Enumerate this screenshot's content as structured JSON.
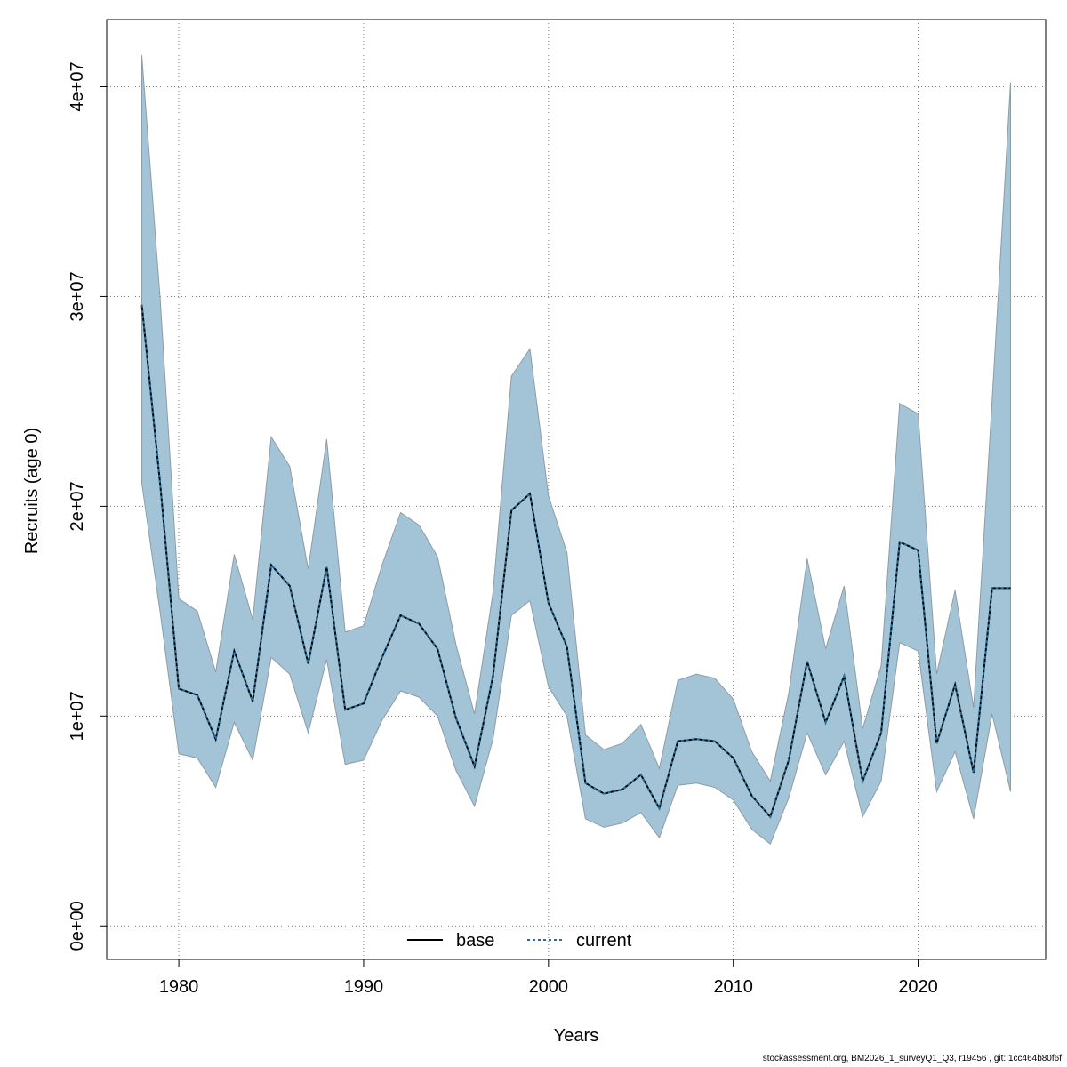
{
  "chart_data": {
    "type": "line",
    "title": "",
    "xlabel": "Years",
    "ylabel": "Recruits (age 0)",
    "xlim": [
      1976.1,
      2026.9
    ],
    "ylim": [
      -1600000,
      43200000
    ],
    "x_ticks": [
      1980,
      1990,
      2000,
      2010,
      2020
    ],
    "x_tick_labels": [
      "1980",
      "1990",
      "2000",
      "2010",
      "2020"
    ],
    "y_ticks": [
      0,
      10000000,
      20000000,
      30000000,
      40000000
    ],
    "y_tick_labels": [
      "0e+00",
      "1e+07",
      "2e+07",
      "3e+07",
      "4e+07"
    ],
    "grid": true,
    "legend_position": "bottom",
    "colors": {
      "band": "#a3c4d6",
      "band_edge": "#8e9ca6",
      "base": "#000000",
      "current": "#1f6fa0",
      "grid": "#7a7a7a"
    },
    "x": [
      1978,
      1979,
      1980,
      1981,
      1982,
      1983,
      1984,
      1985,
      1986,
      1987,
      1988,
      1989,
      1990,
      1991,
      1992,
      1993,
      1994,
      1995,
      1996,
      1997,
      1998,
      1999,
      2000,
      2001,
      2002,
      2003,
      2004,
      2005,
      2006,
      2007,
      2008,
      2009,
      2010,
      2011,
      2012,
      2013,
      2014,
      2015,
      2016,
      2017,
      2018,
      2019,
      2020,
      2021,
      2022,
      2023,
      2024,
      2025
    ],
    "series": [
      {
        "name": "base",
        "style": "solid",
        "values": [
          29600000,
          21000000,
          11300000,
          11000000,
          8900000,
          13100000,
          10700000,
          17200000,
          16200000,
          12500000,
          17100000,
          10300000,
          10600000,
          12800000,
          14800000,
          14400000,
          13200000,
          9900000,
          7600000,
          11900000,
          19800000,
          20600000,
          15400000,
          13300000,
          6800000,
          6300000,
          6500000,
          7200000,
          5600000,
          8800000,
          8900000,
          8800000,
          8000000,
          6200000,
          5200000,
          7900000,
          12600000,
          9700000,
          11900000,
          6900000,
          9200000,
          18300000,
          17900000,
          8700000,
          11500000,
          7300000,
          16100000,
          16100000
        ]
      },
      {
        "name": "current",
        "style": "dotted",
        "values": [
          29600000,
          21000000,
          11300000,
          11000000,
          8900000,
          13100000,
          10700000,
          17200000,
          16200000,
          12500000,
          17100000,
          10300000,
          10600000,
          12800000,
          14800000,
          14400000,
          13200000,
          9900000,
          7600000,
          11900000,
          19800000,
          20600000,
          15400000,
          13300000,
          6800000,
          6300000,
          6500000,
          7200000,
          5600000,
          8800000,
          8900000,
          8800000,
          8000000,
          6200000,
          5200000,
          7900000,
          12600000,
          9700000,
          11900000,
          6900000,
          9200000,
          18300000,
          17900000,
          8700000,
          11500000,
          7300000,
          16100000,
          16100000
        ]
      }
    ],
    "ci_upper": [
      41500000,
      29800000,
      15600000,
      15000000,
      12100000,
      17700000,
      14600000,
      23300000,
      21900000,
      17000000,
      23200000,
      14000000,
      14300000,
      17200000,
      19700000,
      19100000,
      17600000,
      13400000,
      10100000,
      15900000,
      26200000,
      27500000,
      20500000,
      17800000,
      9100000,
      8400000,
      8700000,
      9600000,
      7500000,
      11700000,
      12000000,
      11800000,
      10800000,
      8300000,
      6900000,
      11100000,
      17500000,
      13200000,
      16200000,
      9400000,
      12400000,
      24900000,
      24400000,
      12000000,
      16000000,
      10400000,
      25000000,
      40200000
    ],
    "ci_lower": [
      21100000,
      14900000,
      8200000,
      8000000,
      6600000,
      9700000,
      7900000,
      12800000,
      12000000,
      9200000,
      12700000,
      7700000,
      7900000,
      9800000,
      11200000,
      10900000,
      10000000,
      7400000,
      5700000,
      8900000,
      14800000,
      15500000,
      11400000,
      10000000,
      5100000,
      4700000,
      4900000,
      5400000,
      4200000,
      6700000,
      6800000,
      6600000,
      6000000,
      4600000,
      3900000,
      6100000,
      9200000,
      7200000,
      8800000,
      5200000,
      6900000,
      13500000,
      13100000,
      6400000,
      8300000,
      5100000,
      10100000,
      6400000
    ],
    "legend": [
      "base",
      "current"
    ]
  },
  "footnote": "stockassessment.org, BM2026_1_surveyQ1_Q3, r19456 , git: 1cc464b80f6f"
}
